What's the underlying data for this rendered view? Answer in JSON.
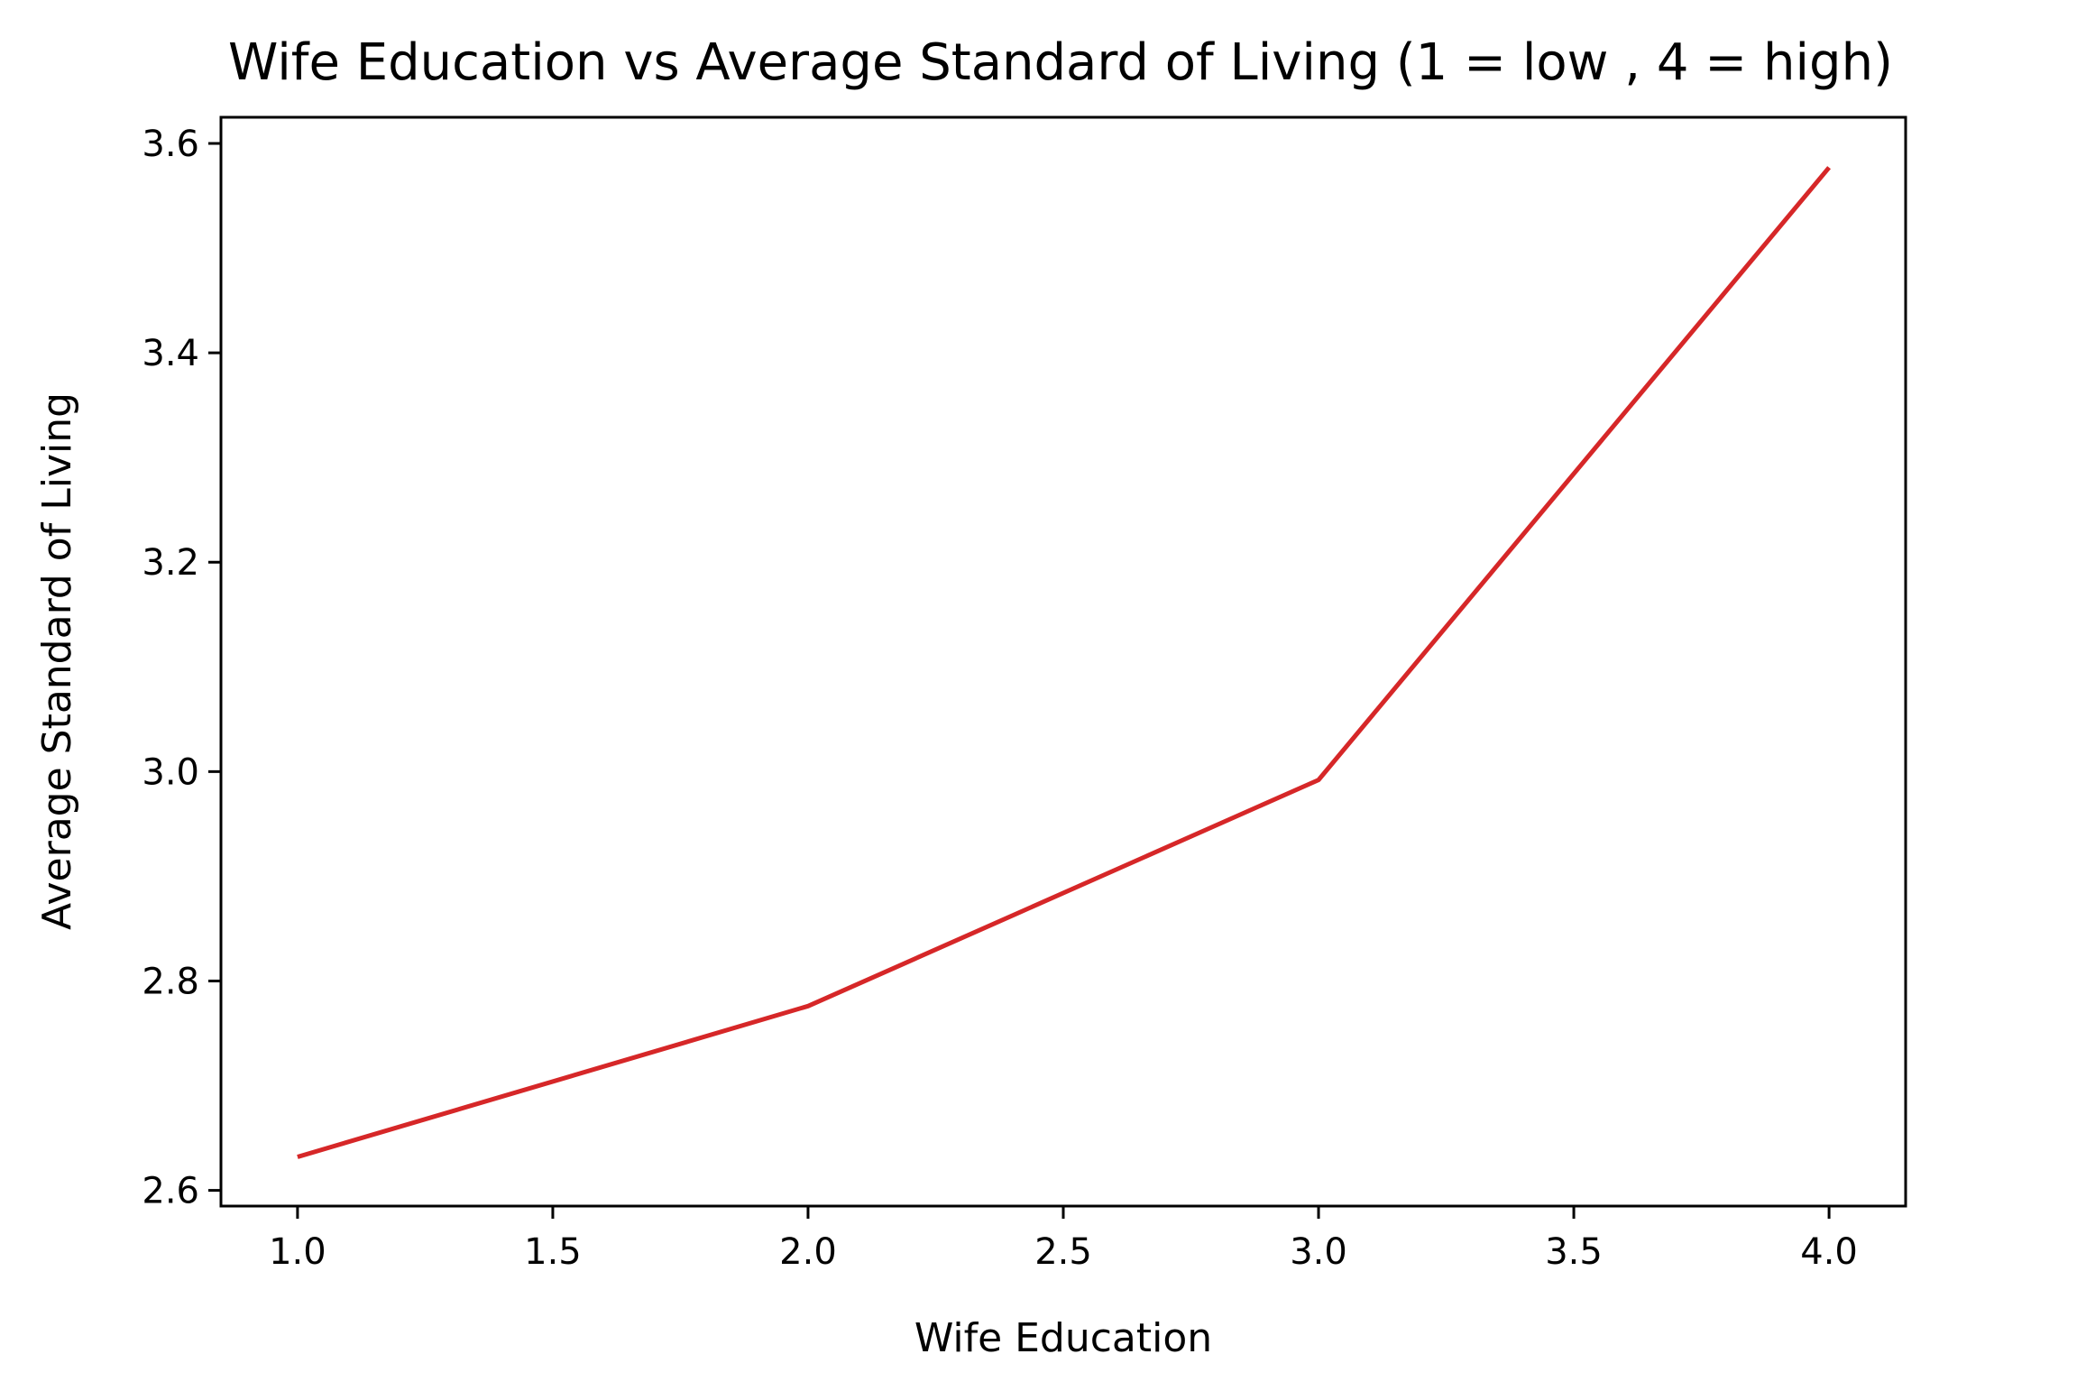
{
  "chart_data": {
    "type": "line",
    "title": "Wife Education vs Average Standard of Living (1 = low , 4 = high)",
    "xlabel": "Wife Education",
    "ylabel": "Average Standard of Living",
    "xlim": [
      0.85,
      4.15
    ],
    "ylim": [
      2.585,
      3.625
    ],
    "xticks": [
      1.0,
      1.5,
      2.0,
      2.5,
      3.0,
      3.5,
      4.0
    ],
    "xtick_labels": [
      "1.0",
      "1.5",
      "2.0",
      "2.5",
      "3.0",
      "3.5",
      "4.0"
    ],
    "yticks": [
      2.6,
      2.8,
      3.0,
      3.2,
      3.4,
      3.6
    ],
    "ytick_labels": [
      "2.6",
      "2.8",
      "3.0",
      "3.2",
      "3.4",
      "3.6"
    ],
    "grid": false,
    "series": [
      {
        "color": "#d62728",
        "x": [
          1,
          2,
          3,
          4
        ],
        "y": [
          2.632,
          2.776,
          2.992,
          3.577
        ]
      }
    ]
  }
}
